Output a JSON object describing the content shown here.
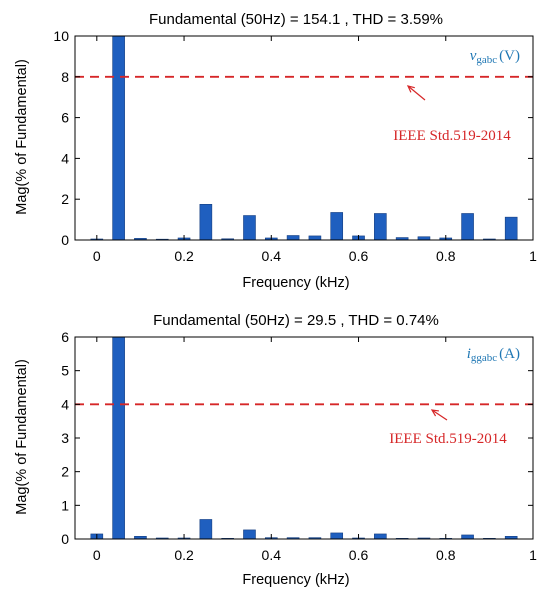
{
  "chart_data": [
    {
      "type": "bar",
      "title": "Fundamental (50Hz) = 154.1 , THD = 3.59%",
      "xlabel": "Frequency (kHz)",
      "ylabel": "Mag(% of Fundamental)",
      "xlim": [
        -0.05,
        1.0
      ],
      "ylim": [
        0,
        10
      ],
      "xticks": [
        0,
        0.2,
        0.4,
        0.6,
        0.8,
        1
      ],
      "xtick_labels": [
        "0",
        "0.2",
        "0.4",
        "0.6",
        "0.8",
        "1"
      ],
      "yticks": [
        0,
        2,
        4,
        6,
        8,
        10
      ],
      "ytick_labels": [
        "0",
        "2",
        "4",
        "6",
        "8",
        "10"
      ],
      "x": [
        0,
        0.05,
        0.1,
        0.15,
        0.2,
        0.25,
        0.3,
        0.35,
        0.4,
        0.45,
        0.5,
        0.55,
        0.6,
        0.65,
        0.7,
        0.75,
        0.8,
        0.85,
        0.9,
        0.95
      ],
      "values": [
        0.05,
        10,
        0.08,
        0.04,
        0.1,
        1.75,
        0.06,
        1.2,
        0.1,
        0.22,
        0.2,
        1.35,
        0.2,
        1.3,
        0.12,
        0.16,
        0.1,
        1.3,
        0.05,
        1.12
      ],
      "reference_line": {
        "y": 8,
        "label": "IEEE Std.519-2014"
      },
      "signal": {
        "name_main": "v",
        "name_sub": "gabc",
        "unit": "(V)"
      },
      "grid": false,
      "colors": {
        "bar": "#1f5fbf",
        "reference": "#d62728",
        "signal": "#1f77b4"
      }
    },
    {
      "type": "bar",
      "title": "Fundamental (50Hz) = 29.5 , THD = 0.74%",
      "xlabel": "Frequency (kHz)",
      "ylabel": "Mag(% of Fundamental)",
      "xlim": [
        -0.05,
        1.0
      ],
      "ylim": [
        0,
        6
      ],
      "xticks": [
        0,
        0.2,
        0.4,
        0.6,
        0.8,
        1
      ],
      "xtick_labels": [
        "0",
        "0.2",
        "0.4",
        "0.6",
        "0.8",
        "1"
      ],
      "yticks": [
        0,
        1,
        2,
        3,
        4,
        5,
        6
      ],
      "ytick_labels": [
        "0",
        "1",
        "2",
        "3",
        "4",
        "5",
        "6"
      ],
      "x": [
        0,
        0.05,
        0.1,
        0.15,
        0.2,
        0.25,
        0.3,
        0.35,
        0.4,
        0.45,
        0.5,
        0.55,
        0.6,
        0.65,
        0.7,
        0.75,
        0.8,
        0.85,
        0.9,
        0.95
      ],
      "values": [
        0.15,
        6,
        0.08,
        0.03,
        0.03,
        0.58,
        0.02,
        0.27,
        0.04,
        0.04,
        0.04,
        0.18,
        0.03,
        0.15,
        0.02,
        0.03,
        0.02,
        0.12,
        0.02,
        0.08
      ],
      "reference_line": {
        "y": 4,
        "label": "IEEE Std.519-2014"
      },
      "signal": {
        "name_main": "i",
        "name_sub": "ggabc",
        "unit": "(A)"
      },
      "grid": false,
      "colors": {
        "bar": "#1f5fbf",
        "reference": "#d62728",
        "signal": "#1f77b4"
      }
    }
  ]
}
